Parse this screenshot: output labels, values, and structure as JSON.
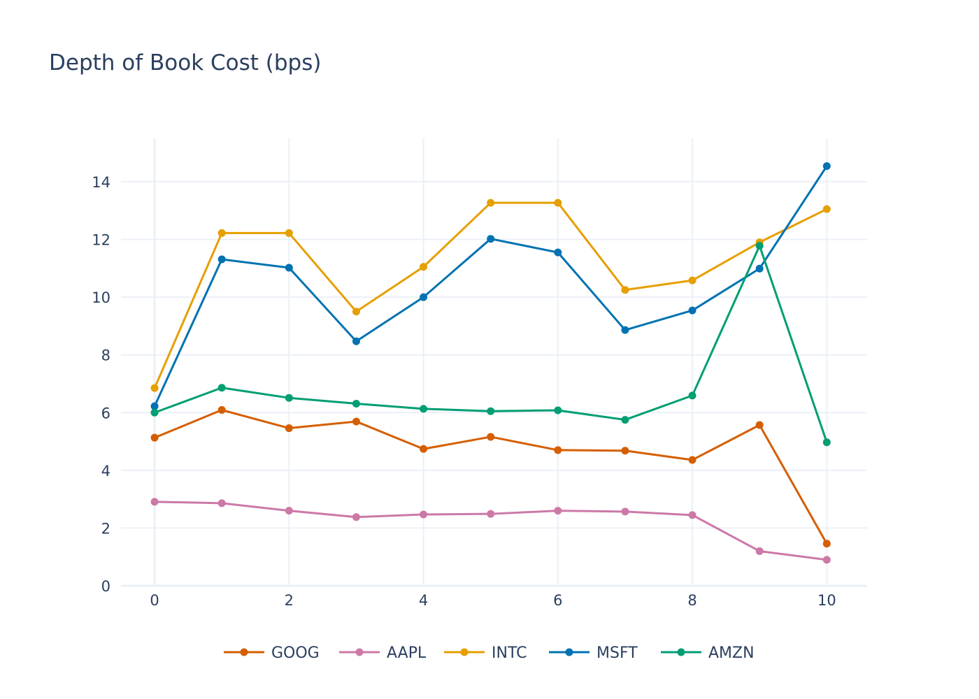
{
  "chart_data": {
    "type": "line",
    "title": "Depth of Book Cost (bps)",
    "xlabel": "",
    "ylabel": "",
    "x": [
      0,
      1,
      2,
      3,
      4,
      5,
      6,
      7,
      8,
      9,
      10
    ],
    "xlim": [
      -0.5,
      10.6
    ],
    "ylim": [
      0,
      15.5
    ],
    "x_ticks": [
      0,
      2,
      4,
      6,
      8,
      10
    ],
    "y_ticks": [
      0,
      2,
      4,
      6,
      8,
      10,
      12,
      14
    ],
    "grid": true,
    "legend_position": "bottom-center",
    "series": [
      {
        "name": "GOOG",
        "color": "#D55E00",
        "values": [
          5.13,
          6.09,
          5.46,
          5.69,
          4.74,
          5.16,
          4.7,
          4.68,
          4.36,
          5.57,
          1.46
        ]
      },
      {
        "name": "AAPL",
        "color": "#CC79A7",
        "values": [
          2.91,
          2.86,
          2.6,
          2.38,
          2.47,
          2.49,
          2.6,
          2.57,
          2.45,
          1.2,
          0.9
        ]
      },
      {
        "name": "INTC",
        "color": "#E69F00",
        "values": [
          6.85,
          12.22,
          12.22,
          9.5,
          11.05,
          13.27,
          13.27,
          10.25,
          10.58,
          11.9,
          13.05
        ]
      },
      {
        "name": "MSFT",
        "color": "#0072B2",
        "values": [
          6.22,
          11.31,
          11.02,
          8.47,
          10.0,
          12.02,
          11.55,
          8.86,
          9.54,
          10.99,
          14.54
        ]
      },
      {
        "name": "AMZN",
        "color": "#009E73",
        "values": [
          6.0,
          6.86,
          6.51,
          6.31,
          6.13,
          6.05,
          6.08,
          5.75,
          6.59,
          11.78,
          4.97
        ]
      }
    ]
  }
}
